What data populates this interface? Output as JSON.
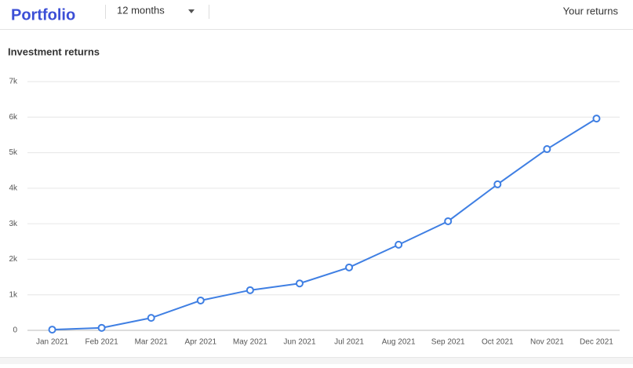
{
  "header": {
    "title": "Portfolio",
    "period": "12 months",
    "link": "Your returns"
  },
  "chart_data": {
    "type": "line",
    "title": "Investment returns",
    "categories": [
      "Jan 2021",
      "Feb 2021",
      "Mar 2021",
      "Apr 2021",
      "May 2021",
      "Jun 2021",
      "Jul 2021",
      "Aug 2021",
      "Sep 2021",
      "Oct 2021",
      "Nov 2021",
      "Dec 2021"
    ],
    "values": [
      20,
      70,
      350,
      840,
      1130,
      1320,
      1770,
      2410,
      3070,
      4110,
      5100,
      5960
    ],
    "color": "#3f7fe3",
    "ylim": [
      0,
      7000
    ],
    "yticks": [
      0,
      {
        "value": 1000,
        "label": "1k"
      },
      {
        "value": 2000,
        "label": "2k"
      },
      {
        "value": 3000,
        "label": "3k"
      },
      {
        "value": 4000,
        "label": "4k"
      },
      {
        "value": 5000,
        "label": "5k"
      },
      {
        "value": 6000,
        "label": "6k"
      },
      {
        "value": 7000,
        "label": "7k"
      }
    ],
    "grid": true
  }
}
